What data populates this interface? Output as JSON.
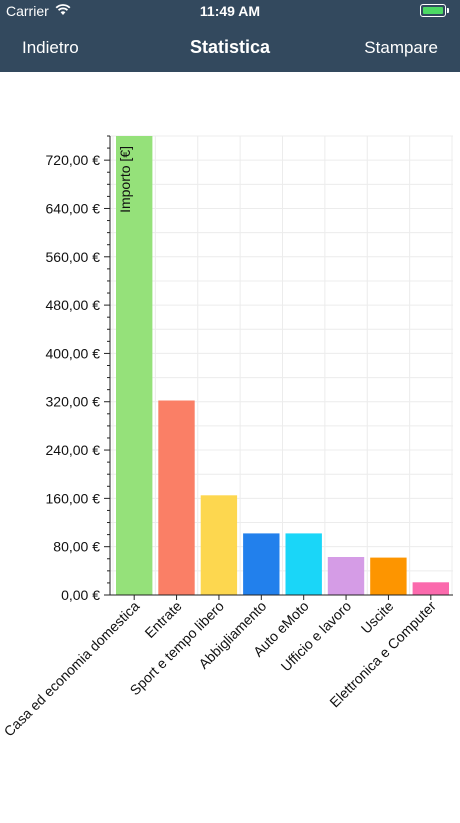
{
  "status_bar": {
    "carrier": "Carrier",
    "time": "11:49 AM",
    "battery_color": "#4cd964",
    "icons": [
      "wifi-icon",
      "battery-icon"
    ]
  },
  "nav_bar": {
    "back_label": "Indietro",
    "title": "Statistica",
    "action_label": "Stampare",
    "background": "#33495e"
  },
  "chart_data": {
    "type": "bar",
    "ylabel": "Importo [€]",
    "ylim": [
      0,
      760
    ],
    "yticks": [
      0,
      80,
      160,
      240,
      320,
      400,
      480,
      560,
      640,
      720
    ],
    "ytick_labels": [
      "0,00 €",
      "80,00 €",
      "160,00 €",
      "240,00 €",
      "320,00 €",
      "400,00 €",
      "480,00 €",
      "560,00 €",
      "640,00 €",
      "720,00 €"
    ],
    "grid": true,
    "categories": [
      "Casa ed economia domestica",
      "Entrate",
      "Sport e tempo libero",
      "Abbigliamento",
      "Auto eMoto",
      "Ufficio e lavoro",
      "Uscite",
      "Elettronica e Computer"
    ],
    "values": [
      760,
      322,
      165,
      102,
      102,
      63,
      62,
      21
    ],
    "colors": [
      "#95e17a",
      "#fa7f66",
      "#fdd74f",
      "#2280ec",
      "#1ad6f8",
      "#d59ce6",
      "#fd9500",
      "#fb6aad"
    ]
  }
}
